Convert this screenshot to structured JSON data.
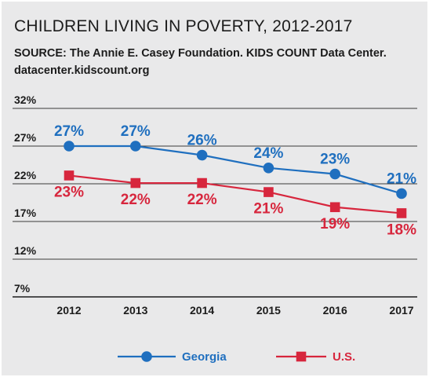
{
  "chart_data": {
    "type": "line",
    "title": "CHILDREN LIVING IN POVERTY, 2012-2017",
    "source_line1": "SOURCE: The Annie E. Casey Foundation. KIDS COUNT Data Center.",
    "source_line2": "datacenter.kidscount.org",
    "categories": [
      "2012",
      "2013",
      "2014",
      "2015",
      "2016",
      "2017"
    ],
    "y_ticks": [
      "32%",
      "27%",
      "22%",
      "17%",
      "12%",
      "7%"
    ],
    "ylim": [
      7,
      32
    ],
    "grid": "horizontal",
    "legend_position": "bottom",
    "series": [
      {
        "name": "Georgia",
        "color": "#1f6fbf",
        "marker": "circle",
        "values": [
          27,
          27,
          25.8,
          24.1,
          23.3,
          20.7
        ],
        "labels": [
          "27%",
          "27%",
          "26%",
          "24%",
          "23%",
          "21%"
        ],
        "label_position": "above"
      },
      {
        "name": "U.S.",
        "color": "#d7263d",
        "marker": "square",
        "values": [
          23.1,
          22.1,
          22.1,
          20.9,
          18.9,
          18.1
        ],
        "labels": [
          "23%",
          "22%",
          "22%",
          "21%",
          "19%",
          "18%"
        ],
        "label_position": "below"
      }
    ]
  }
}
